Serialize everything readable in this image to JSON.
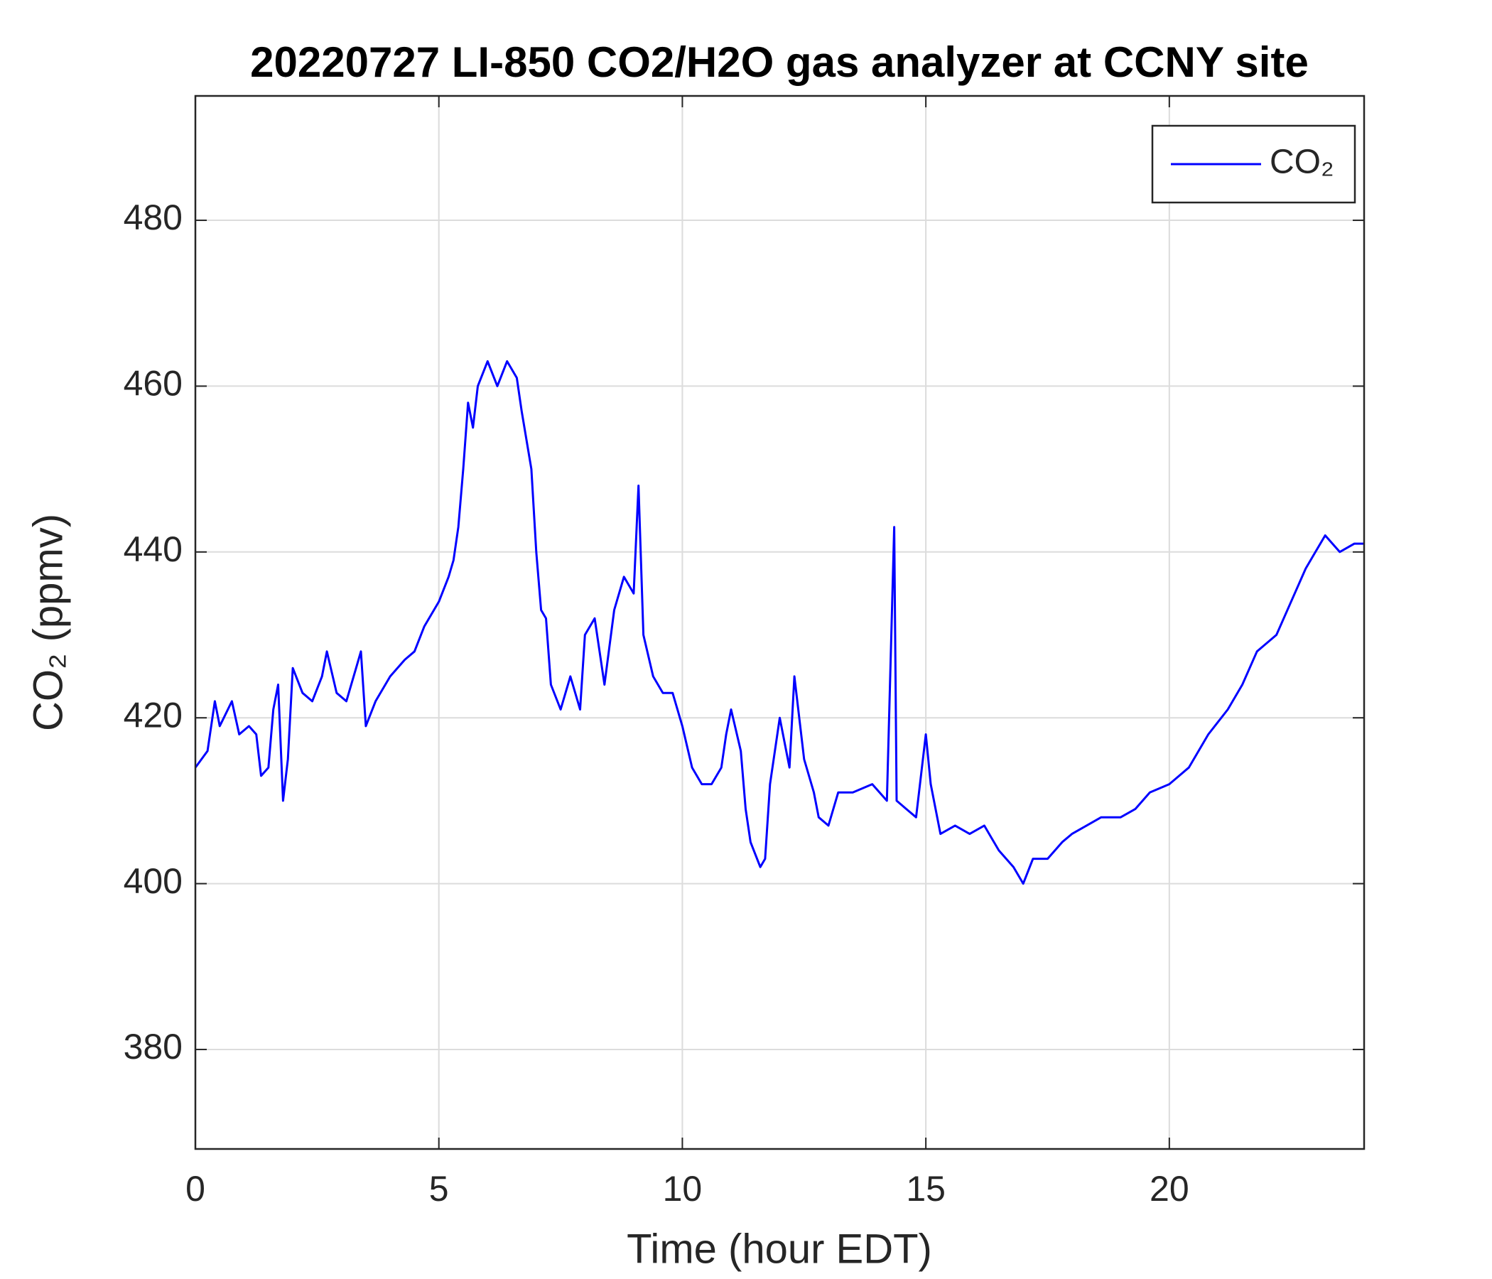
{
  "chart_data": {
    "type": "line",
    "title": "20220727 LI-850 CO2/H2O gas analyzer at CCNY site",
    "x_label": "Time (hour EDT)",
    "y_label": "CO₂ (ppmv)",
    "xlim": [
      0,
      24
    ],
    "ylim": [
      368,
      495
    ],
    "xticks": [
      0,
      5,
      10,
      15,
      20
    ],
    "yticks": [
      380,
      400,
      420,
      440,
      460,
      480
    ],
    "grid": true,
    "legend": "upper right",
    "x": [
      0,
      0.25,
      0.4,
      0.5,
      0.75,
      0.9,
      1.1,
      1.25,
      1.35,
      1.5,
      1.6,
      1.7,
      1.8,
      1.9,
      2.0,
      2.2,
      2.4,
      2.6,
      2.7,
      2.9,
      3.1,
      3.3,
      3.4,
      3.5,
      3.7,
      4.0,
      4.3,
      4.5,
      4.7,
      5.0,
      5.2,
      5.3,
      5.4,
      5.5,
      5.6,
      5.7,
      5.8,
      6.0,
      6.2,
      6.4,
      6.6,
      6.7,
      6.9,
      7.0,
      7.1,
      7.2,
      7.3,
      7.5,
      7.7,
      7.9,
      8.0,
      8.2,
      8.4,
      8.6,
      8.8,
      9.0,
      9.1,
      9.2,
      9.4,
      9.6,
      9.8,
      10.0,
      10.2,
      10.4,
      10.6,
      10.8,
      10.9,
      11.0,
      11.2,
      11.3,
      11.4,
      11.6,
      11.7,
      11.8,
      12.0,
      12.2,
      12.3,
      12.5,
      12.7,
      12.8,
      13.0,
      13.2,
      13.5,
      13.9,
      14.2,
      14.35,
      14.4,
      14.6,
      14.8,
      15.0,
      15.1,
      15.3,
      15.6,
      15.9,
      16.2,
      16.5,
      16.8,
      17.0,
      17.2,
      17.5,
      17.8,
      18.0,
      18.3,
      18.6,
      19.0,
      19.3,
      19.6,
      20.0,
      20.4,
      20.8,
      21.2,
      21.5,
      21.8,
      22.2,
      22.5,
      22.8,
      23.0,
      23.2,
      23.5,
      23.8,
      24.0
    ],
    "series": [
      {
        "name": "CO₂",
        "color": "#0000ff",
        "values": [
          414,
          416,
          422,
          419,
          422,
          418,
          419,
          418,
          413,
          414,
          421,
          424,
          410,
          415,
          426,
          423,
          422,
          425,
          428,
          423,
          422,
          426,
          428,
          419,
          422,
          425,
          427,
          428,
          431,
          434,
          437,
          439,
          443,
          450,
          458,
          455,
          460,
          463,
          460,
          463,
          461,
          457,
          450,
          440,
          433,
          432,
          424,
          421,
          425,
          421,
          430,
          432,
          424,
          433,
          437,
          435,
          448,
          430,
          425,
          423,
          423,
          419,
          414,
          412,
          412,
          414,
          418,
          421,
          416,
          409,
          405,
          402,
          403,
          412,
          420,
          414,
          425,
          415,
          411,
          408,
          407,
          411,
          411,
          412,
          410,
          443,
          410,
          409,
          408,
          418,
          412,
          406,
          407,
          406,
          407,
          404,
          402,
          400,
          403,
          403,
          405,
          406,
          407,
          408,
          408,
          409,
          411,
          412,
          414,
          418,
          421,
          424,
          428,
          430,
          434,
          438,
          440,
          442,
          440,
          441,
          441
        ]
      }
    ]
  }
}
